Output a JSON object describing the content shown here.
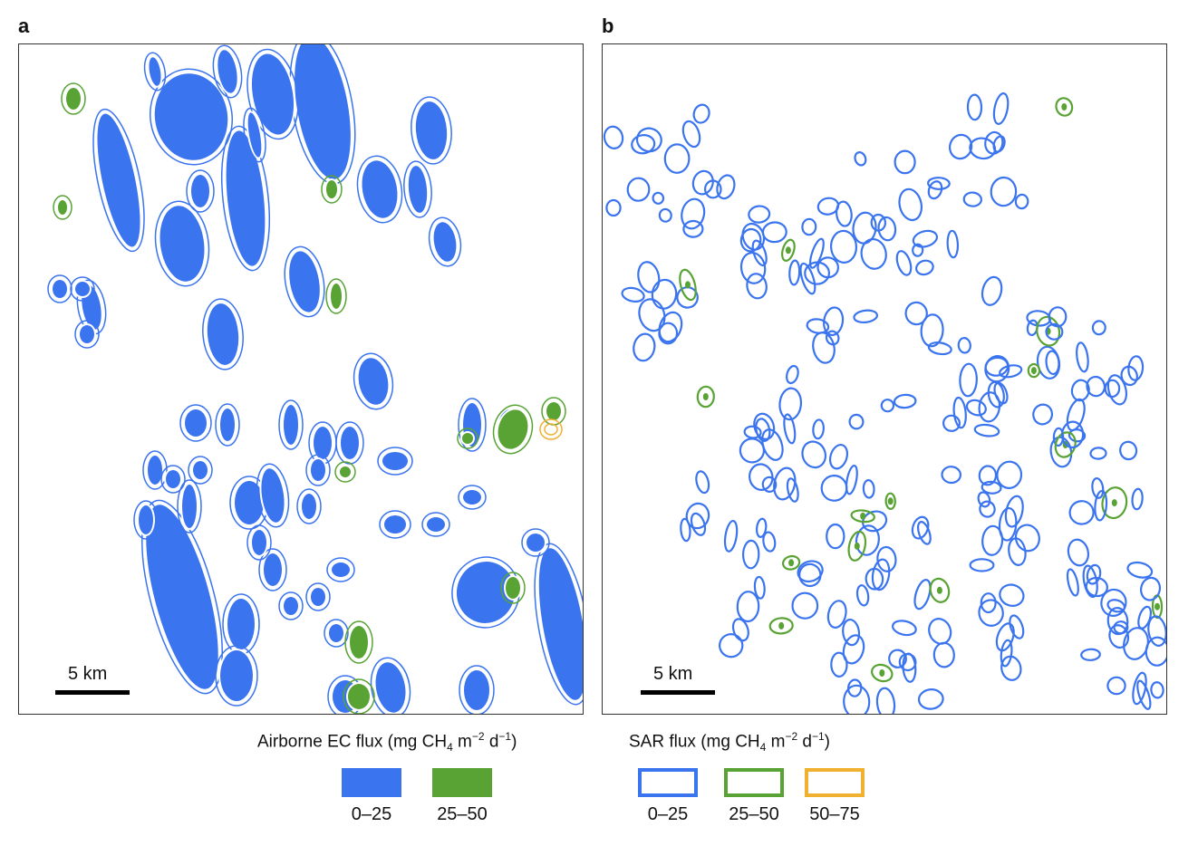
{
  "panels": [
    {
      "letter": "a",
      "scalebar_label": "5 km"
    },
    {
      "letter": "b",
      "scalebar_label": "5 km"
    }
  ],
  "legend_ec": {
    "title_main": "Airborne EC flux (mg CH",
    "title_sub": "4",
    "title_mid": " m",
    "title_sup1": "−2",
    "title_mid2": " d",
    "title_sup2": "−1",
    "title_end": ")",
    "items": [
      {
        "label": "0–25",
        "color": "#3b74ef",
        "style": "filled"
      },
      {
        "label": "25–50",
        "color": "#58a334",
        "style": "filled"
      }
    ]
  },
  "legend_sar": {
    "title_main": "SAR flux (mg CH",
    "title_sub": "4",
    "title_mid": " m",
    "title_sup1": "−2",
    "title_mid2": " d",
    "title_sup2": "−1",
    "title_end": ")",
    "items": [
      {
        "label": "0–25",
        "color": "#3b74ef",
        "style": "outline"
      },
      {
        "label": "25–50",
        "color": "#58a334",
        "style": "outline"
      },
      {
        "label": "50–75",
        "color": "#f0b030",
        "style": "outline"
      }
    ]
  },
  "colors": {
    "blue": "#3b74ef",
    "green": "#58a334",
    "orange": "#f0b030"
  }
}
